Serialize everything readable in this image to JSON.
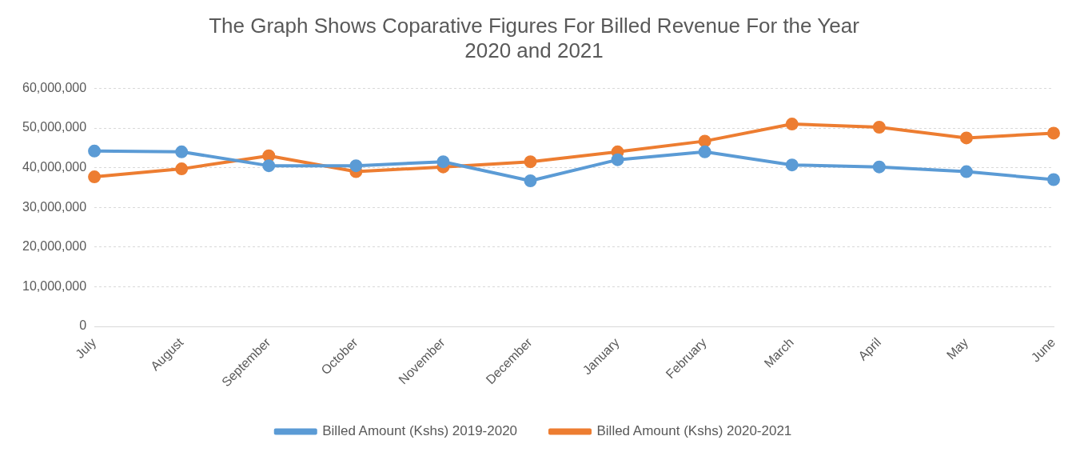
{
  "chart_data": {
    "type": "line",
    "title": "The Graph Shows Coparative Figures For Billed Revenue For the Year 2020 and 2021",
    "categories": [
      "July",
      "August",
      "September",
      "October",
      "November",
      "December",
      "January",
      "February",
      "March",
      "April",
      "May",
      "June"
    ],
    "series": [
      {
        "name": "Billed Amount (Kshs) 2019-2020",
        "color": "#5b9bd5",
        "values": [
          44200000,
          44000000,
          40500000,
          40500000,
          41500000,
          36700000,
          42000000,
          44000000,
          40700000,
          40200000,
          39000000,
          37000000
        ]
      },
      {
        "name": "Billed Amount (Kshs) 2020-2021",
        "color": "#ed7d31",
        "values": [
          37700000,
          39700000,
          43000000,
          39000000,
          40200000,
          41500000,
          44000000,
          46700000,
          51000000,
          50200000,
          47500000,
          48700000
        ]
      }
    ],
    "ylim": [
      0,
      60000000
    ],
    "yticks": [
      0,
      {
        "value": 10000000,
        "label": "10,000,000"
      },
      {
        "value": 20000000,
        "label": "20,000,000"
      },
      {
        "value": 30000000,
        "label": "30,000,000"
      },
      {
        "value": 40000000,
        "label": "40,000,000"
      },
      {
        "value": 50000000,
        "label": "50,000,000"
      },
      {
        "value": 60000000,
        "label": "60,000,000"
      }
    ],
    "grid": "y",
    "legend": "bottom",
    "marker": "circle",
    "line_style": "solid"
  }
}
